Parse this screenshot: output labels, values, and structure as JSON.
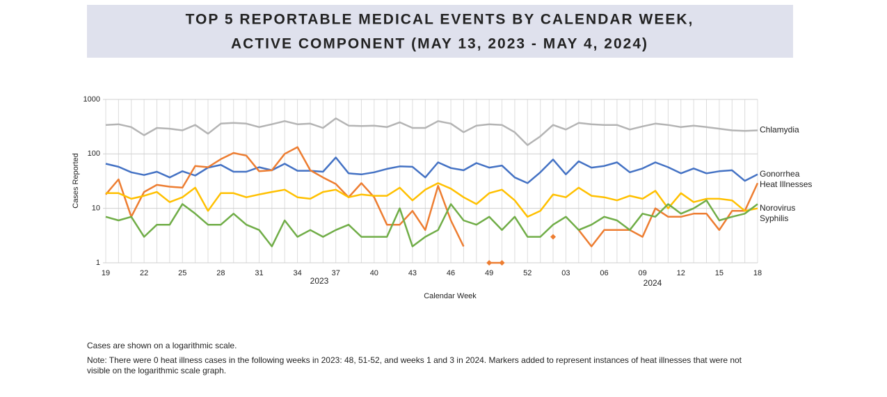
{
  "chart_data": {
    "type": "line",
    "title": [
      "TOP 5 REPORTABLE MEDICAL EVENTS BY CALENDAR WEEK,",
      "ACTIVE COMPONENT (MAY 13, 2023 - MAY 4, 2024)"
    ],
    "ylabel": "Cases Reported",
    "xlabel": "Calendar Week",
    "year_labels": [
      "2023",
      "2024"
    ],
    "log_scale": true,
    "grid": true,
    "ylim": [
      1,
      1000
    ],
    "yticks": [
      1,
      10,
      100,
      1000
    ],
    "categories": [
      "19",
      null,
      null,
      "22",
      null,
      null,
      "25",
      null,
      null,
      "28",
      null,
      null,
      "31",
      null,
      null,
      "34",
      null,
      null,
      "37",
      null,
      null,
      "40",
      null,
      null,
      "43",
      null,
      null,
      "46",
      null,
      null,
      "49",
      null,
      null,
      "52",
      null,
      null,
      "03",
      null,
      null,
      "06",
      null,
      null,
      "09",
      null,
      null,
      "12",
      null,
      null,
      "15",
      null,
      null,
      "18"
    ],
    "series": [
      {
        "name": "Chlamydia",
        "color": "#b4b4b4",
        "values": [
          340,
          350,
          310,
          220,
          300,
          290,
          270,
          340,
          235,
          360,
          370,
          360,
          310,
          350,
          400,
          350,
          360,
          300,
          450,
          330,
          325,
          330,
          310,
          380,
          300,
          300,
          400,
          360,
          250,
          330,
          350,
          340,
          250,
          145,
          210,
          340,
          280,
          370,
          350,
          340,
          340,
          280,
          320,
          360,
          340,
          310,
          330,
          310,
          290,
          270,
          265,
          270
        ]
      },
      {
        "name": "Gonorrhea",
        "color": "#4472c4",
        "values": [
          66,
          58,
          46,
          41,
          47,
          37,
          48,
          40,
          56,
          63,
          47,
          47,
          57,
          50,
          66,
          49,
          49,
          47,
          86,
          44,
          42,
          46,
          53,
          59,
          58,
          37,
          70,
          55,
          50,
          68,
          56,
          61,
          37,
          29,
          46,
          79,
          42,
          73,
          56,
          60,
          70,
          46,
          54,
          70,
          57,
          44,
          54,
          44,
          48,
          50,
          32,
          42
        ]
      },
      {
        "name": "Heat Illnesses",
        "color": "#ed7d31",
        "values": [
          18,
          34,
          7,
          20,
          27,
          25,
          24,
          60,
          57,
          80,
          104,
          93,
          48,
          50,
          100,
          133,
          50,
          37,
          28,
          16,
          29,
          16,
          5,
          5,
          9,
          4,
          26,
          6,
          2,
          null,
          1,
          1,
          null,
          null,
          null,
          3,
          null,
          4,
          2,
          4,
          4,
          4,
          3,
          10,
          7,
          7,
          8,
          8,
          4,
          9,
          9,
          29
        ]
      },
      {
        "name": "Norovirus",
        "color": "#ffc000",
        "values": [
          19,
          19,
          15,
          17,
          20,
          13,
          16,
          24,
          9,
          19,
          19,
          16,
          18,
          20,
          22,
          16,
          15,
          20,
          22,
          16,
          18,
          17,
          17,
          24,
          14,
          22,
          29,
          23,
          16,
          12,
          19,
          22,
          14,
          7,
          9,
          18,
          16,
          24,
          17,
          16,
          14,
          17,
          15,
          21,
          10,
          19,
          13,
          15,
          15,
          14,
          9,
          10
        ]
      },
      {
        "name": "Syphilis",
        "color": "#70ad47",
        "values": [
          7,
          6,
          7,
          3,
          5,
          5,
          12,
          8,
          5,
          5,
          8,
          5,
          4,
          2,
          6,
          3,
          4,
          3,
          4,
          5,
          3,
          3,
          3,
          10,
          2,
          3,
          4,
          12,
          6,
          5,
          7,
          4,
          7,
          3,
          3,
          5,
          7,
          4,
          5,
          7,
          6,
          4,
          8,
          7,
          12,
          8,
          10,
          14,
          6,
          7,
          8,
          12
        ]
      }
    ],
    "notes": [
      "Cases are shown on a logarithmic scale.",
      "Note: There were 0 heat illness cases in the following weeks in 2023: 48, 51-52, and weeks 1 and 3 in 2024. Markers added to represent instances of heat illnesses that were not",
      "visible on the logarithmic scale graph."
    ]
  }
}
